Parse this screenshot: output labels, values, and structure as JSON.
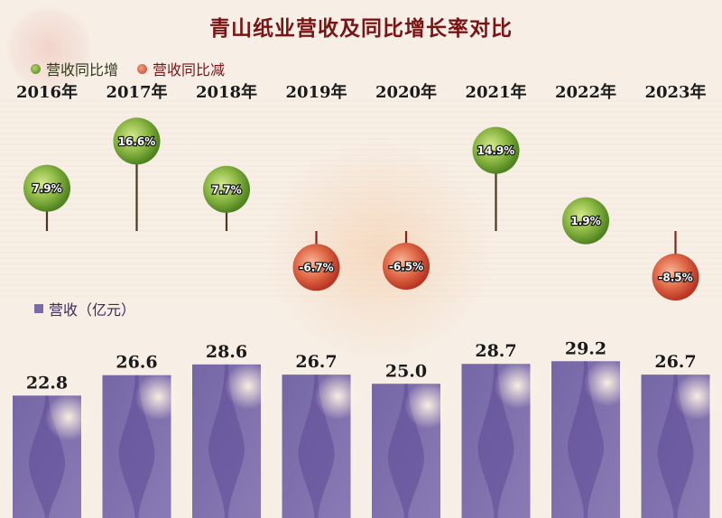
{
  "title": "青山纸业营收及同比增长率对比",
  "legend": {
    "increase_label": "营收同比增",
    "decrease_label": "营收同比减",
    "revenue_label": "营收（亿元）"
  },
  "colors": {
    "title": "#7a1414",
    "increase": "#6a9a2a",
    "decrease": "#d04a32",
    "bar": "#7b6aa8",
    "background": "#f7efe6"
  },
  "chart_data": {
    "type": "bar",
    "categories": [
      "2016年",
      "2017年",
      "2018年",
      "2019年",
      "2020年",
      "2021年",
      "2022年",
      "2023年"
    ],
    "series": [
      {
        "name": "营收（亿元）",
        "values": [
          22.8,
          26.6,
          28.6,
          26.7,
          25.0,
          28.7,
          29.2,
          26.7
        ]
      },
      {
        "name": "营收同比增长率",
        "values": [
          7.9,
          16.6,
          7.7,
          -6.7,
          -6.5,
          14.9,
          1.9,
          -8.5
        ]
      }
    ],
    "rate_labels": [
      "7.9%",
      "16.6%",
      "7.7%",
      "-6.7%",
      "-6.5%",
      "14.9%",
      "1.9%",
      "-8.5%"
    ],
    "value_labels": [
      "22.8",
      "26.6",
      "28.6",
      "26.7",
      "25.0",
      "28.7",
      "29.2",
      "26.7"
    ]
  }
}
